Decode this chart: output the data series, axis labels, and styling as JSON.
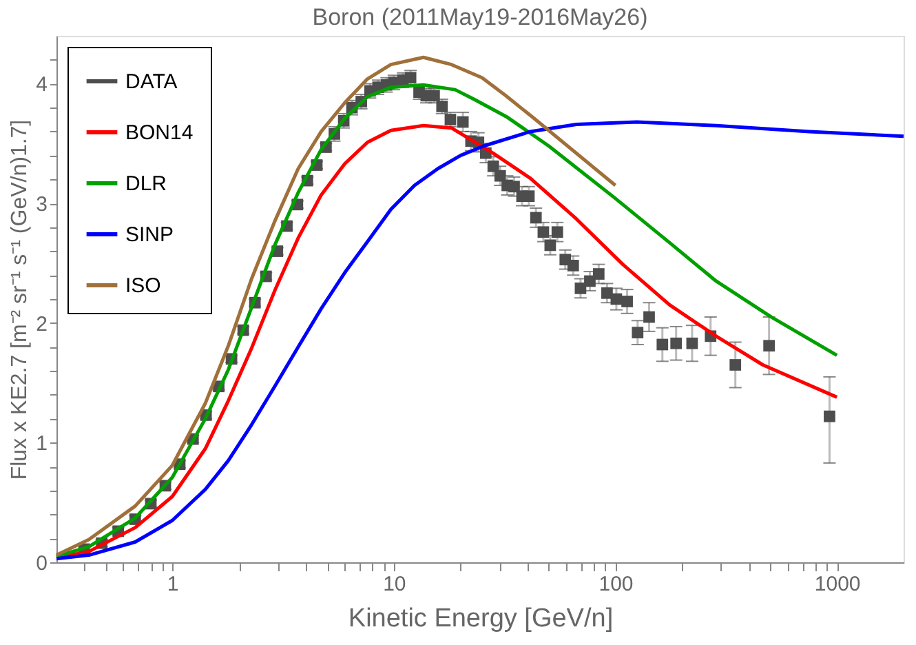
{
  "chart_data": {
    "type": "line",
    "title": "Boron   (2011May19-2016May26)",
    "xlabel": "Kinetic Energy [GeV/n]",
    "ylabel": "Flux x KE2.7 [m⁻² sr⁻¹ s⁻¹ (GeV/n)1.7]",
    "log": "x",
    "xlim": [
      0.3,
      2000
    ],
    "ylim": [
      0,
      4.4
    ],
    "xticks": [
      {
        "value": 0.4,
        "label": null
      },
      {
        "value": 0.5,
        "label": null
      },
      {
        "value": 0.6,
        "label": null
      },
      {
        "value": 0.7,
        "label": null
      },
      {
        "value": 0.8,
        "label": null
      },
      {
        "value": 0.9,
        "label": null
      },
      1,
      {
        "value": 2,
        "label": null
      },
      {
        "value": 3,
        "label": null
      },
      {
        "value": 4,
        "label": null
      },
      {
        "value": 5,
        "label": null
      },
      {
        "value": 6,
        "label": null
      },
      {
        "value": 7,
        "label": null
      },
      {
        "value": 8,
        "label": null
      },
      {
        "value": 9,
        "label": null
      },
      10,
      {
        "value": 20,
        "label": null
      },
      {
        "value": 30,
        "label": null
      },
      {
        "value": 40,
        "label": null
      },
      {
        "value": 50,
        "label": null
      },
      {
        "value": 60,
        "label": null
      },
      {
        "value": 70,
        "label": null
      },
      {
        "value": 80,
        "label": null
      },
      {
        "value": 90,
        "label": null
      },
      100,
      {
        "value": 200,
        "label": null
      },
      {
        "value": 300,
        "label": null
      },
      {
        "value": 400,
        "label": null
      },
      {
        "value": 500,
        "label": null
      },
      {
        "value": 600,
        "label": null
      },
      {
        "value": 700,
        "label": null
      },
      {
        "value": 800,
        "label": null
      },
      {
        "value": 900,
        "label": null
      },
      1000
    ],
    "yticks": [
      0,
      {
        "value": 0.2,
        "label": null
      },
      {
        "value": 0.4,
        "label": null
      },
      {
        "value": 0.6,
        "label": null
      },
      {
        "value": 0.8,
        "label": null
      },
      1,
      {
        "value": 1.2,
        "label": null
      },
      {
        "value": 1.4,
        "label": null
      },
      {
        "value": 1.6,
        "label": null
      },
      {
        "value": 1.8,
        "label": null
      },
      2,
      {
        "value": 2.2,
        "label": null
      },
      {
        "value": 2.4,
        "label": null
      },
      {
        "value": 2.6,
        "label": null
      },
      {
        "value": 2.8,
        "label": null
      },
      3,
      {
        "value": 3.2,
        "label": null
      },
      {
        "value": 3.4,
        "label": null
      },
      {
        "value": 3.6,
        "label": null
      },
      {
        "value": 3.8,
        "label": null
      },
      4,
      {
        "value": 4.2,
        "label": null
      }
    ],
    "grid": false,
    "legend": "top left",
    "series": [
      {
        "name": "DATA",
        "type": "scatter",
        "marker": "square",
        "color": "#4d4d4d",
        "x": [
          0.4,
          0.48,
          0.57,
          0.68,
          0.8,
          0.93,
          1.08,
          1.24,
          1.42,
          1.62,
          1.85,
          2.09,
          2.36,
          2.65,
          2.98,
          3.29,
          3.67,
          4.07,
          4.49,
          4.94,
          5.39,
          5.94,
          6.47,
          7.13,
          7.81,
          8.49,
          9.27,
          10.0,
          11.0,
          11.9,
          13.0,
          14.0,
          15.2,
          16.5,
          18.0,
          20.5,
          22.3,
          24.1,
          26.0,
          28.1,
          30.2,
          32.5,
          34.9,
          37.9,
          40.7,
          43.8,
          47.3,
          50.8,
          54.7,
          59.4,
          64.5,
          69.6,
          76.7,
          84.1,
          91.7,
          101,
          113,
          126,
          142,
          163,
          188,
          222,
          269,
          348,
          494,
          926
        ],
        "values": [
          0.11,
          0.16,
          0.26,
          0.36,
          0.49,
          0.64,
          0.82,
          1.03,
          1.23,
          1.47,
          1.7,
          1.94,
          2.17,
          2.39,
          2.6,
          2.81,
          2.99,
          3.19,
          3.32,
          3.47,
          3.58,
          3.69,
          3.8,
          3.85,
          3.94,
          3.97,
          3.99,
          4.01,
          4.03,
          4.05,
          3.93,
          3.9,
          3.9,
          3.81,
          3.7,
          3.68,
          3.52,
          3.51,
          3.42,
          3.31,
          3.23,
          3.15,
          3.14,
          3.06,
          3.06,
          2.88,
          2.76,
          2.65,
          2.76,
          2.53,
          2.48,
          2.29,
          2.35,
          2.41,
          2.25,
          2.2,
          2.18,
          1.92,
          2.05,
          1.82,
          1.83,
          1.83,
          1.89,
          1.65,
          1.81,
          1.22
        ],
        "errors": [
          0.03,
          0.03,
          0.03,
          0.03,
          0.03,
          0.03,
          0.03,
          0.03,
          0.03,
          0.03,
          0.03,
          0.03,
          0.03,
          0.03,
          0.03,
          0.03,
          0.03,
          0.03,
          0.03,
          0.03,
          0.06,
          0.06,
          0.06,
          0.06,
          0.06,
          0.06,
          0.06,
          0.06,
          0.06,
          0.06,
          0.06,
          0.06,
          0.06,
          0.06,
          0.06,
          0.08,
          0.08,
          0.08,
          0.08,
          0.08,
          0.08,
          0.08,
          0.08,
          0.08,
          0.08,
          0.08,
          0.08,
          0.08,
          0.08,
          0.08,
          0.08,
          0.08,
          0.08,
          0.08,
          0.08,
          0.09,
          0.1,
          0.1,
          0.12,
          0.14,
          0.14,
          0.15,
          0.16,
          0.19,
          0.24,
          [
            0.83,
            1.55
          ]
        ]
      },
      {
        "name": "BON14",
        "type": "line",
        "color": "#ff0000",
        "x": [
          0.3,
          0.42,
          0.68,
          1.0,
          1.41,
          1.79,
          2.28,
          2.9,
          3.7,
          4.7,
          6.0,
          7.6,
          9.7,
          13.6,
          18.2,
          28,
          41.3,
          66.7,
          108,
          176,
          285,
          463,
          1000
        ],
        "values": [
          0.04,
          0.09,
          0.29,
          0.55,
          0.95,
          1.35,
          1.79,
          2.27,
          2.71,
          3.07,
          3.33,
          3.51,
          3.61,
          3.65,
          3.63,
          3.42,
          3.21,
          2.87,
          2.49,
          2.15,
          1.89,
          1.65,
          1.38
        ]
      },
      {
        "name": "DLR",
        "type": "line",
        "color": "#00a000",
        "x": [
          0.3,
          0.42,
          0.68,
          1.0,
          1.41,
          1.79,
          2.28,
          2.9,
          3.7,
          4.7,
          6.0,
          7.6,
          9.7,
          13.6,
          18.9,
          23,
          32.5,
          50,
          98.6,
          176,
          285,
          506,
          1000
        ],
        "values": [
          0.05,
          0.13,
          0.37,
          0.71,
          1.2,
          1.61,
          2.13,
          2.65,
          3.09,
          3.45,
          3.71,
          3.89,
          3.97,
          3.99,
          3.95,
          3.87,
          3.72,
          3.48,
          3.05,
          2.67,
          2.35,
          2.05,
          1.73
        ]
      },
      {
        "name": "SINP",
        "type": "line",
        "color": "#0000ff",
        "x": [
          0.3,
          0.42,
          0.68,
          1.0,
          1.41,
          1.79,
          2.28,
          2.9,
          3.7,
          4.7,
          6.0,
          7.6,
          9.7,
          12.4,
          15.8,
          20,
          25.5,
          41.3,
          66.7,
          125,
          285,
          750,
          2000
        ],
        "values": [
          0.03,
          0.06,
          0.17,
          0.35,
          0.61,
          0.85,
          1.15,
          1.47,
          1.8,
          2.12,
          2.42,
          2.68,
          2.95,
          3.15,
          3.29,
          3.4,
          3.48,
          3.6,
          3.66,
          3.68,
          3.65,
          3.6,
          3.56
        ]
      },
      {
        "name": "ISO",
        "type": "line",
        "color": "#a0703a",
        "x": [
          0.3,
          0.42,
          0.68,
          1.0,
          1.41,
          1.79,
          2.28,
          2.9,
          3.7,
          4.7,
          6.0,
          7.6,
          9.7,
          13.6,
          18.2,
          25,
          32,
          42.3,
          100
        ],
        "values": [
          0.06,
          0.19,
          0.47,
          0.81,
          1.33,
          1.81,
          2.37,
          2.85,
          3.29,
          3.6,
          3.84,
          4.04,
          4.16,
          4.22,
          4.16,
          4.05,
          3.9,
          3.72,
          3.15
        ]
      }
    ]
  }
}
